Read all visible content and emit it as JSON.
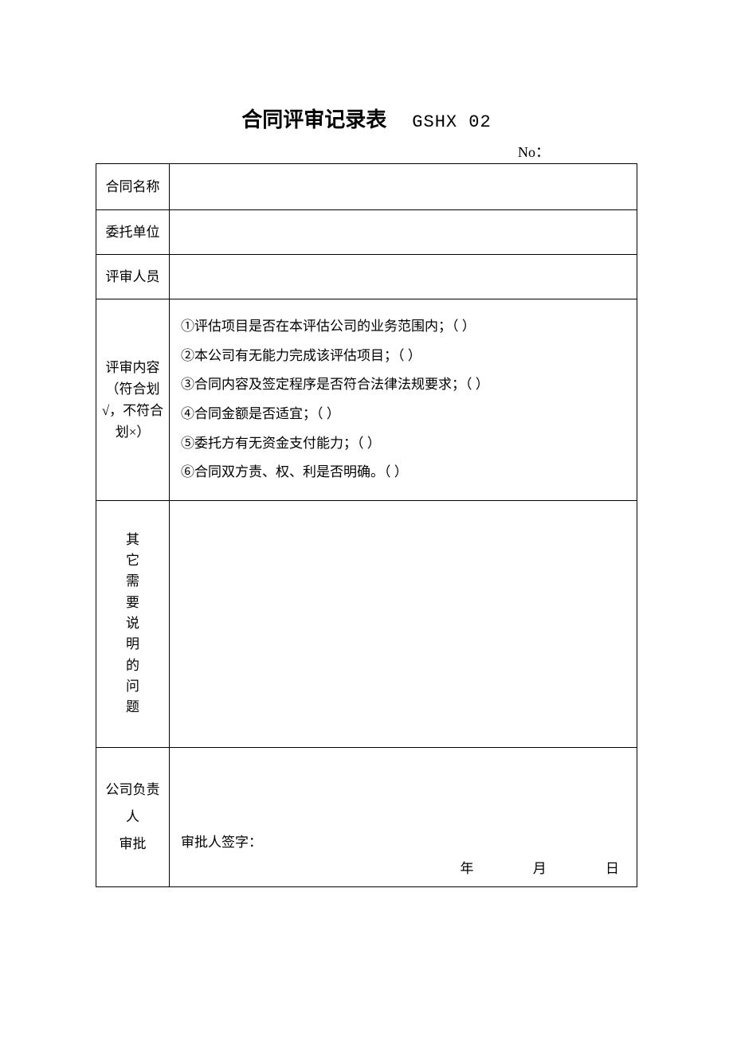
{
  "header": {
    "title": "合同评审记录表",
    "code": "GSHX 02",
    "no_label": "No："
  },
  "rows": {
    "contract_name_label": "合同名称",
    "contract_name_value": "",
    "client_label": "委托单位",
    "client_value": "",
    "reviewers_label": "评审人员",
    "reviewers_value": "",
    "review_content_label": "评审内容（符合划√，不符合划×）",
    "review_items": {
      "item1": "①评估项目是否在本评估公司的业务范围内；（ ）",
      "item2": "②本公司有无能力完成该评估项目；（ ）",
      "item3": "③合同内容及签定程序是否符合法律法规要求；（ ）",
      "item4": "④合同金额是否适宜；（ ）",
      "item5": "⑤委托方有无资金支付能力；（ ）",
      "item6": "⑥合同双方责、权、利是否明确。（ ）"
    },
    "other_notes_label": "其它需要说明的问题",
    "other_notes_value": "",
    "approval_label_line1": "公司负责",
    "approval_label_line2": "人",
    "approval_label_line3": "审批",
    "signature_label": "审批人签字：",
    "date_year": "年",
    "date_month": "月",
    "date_day": "日"
  },
  "styling": {
    "background_color": "#ffffff",
    "text_color": "#000000",
    "border_color": "#000000",
    "title_fontsize": 26,
    "code_fontsize": 22,
    "body_fontsize": 17,
    "font_family": "SimSun"
  }
}
